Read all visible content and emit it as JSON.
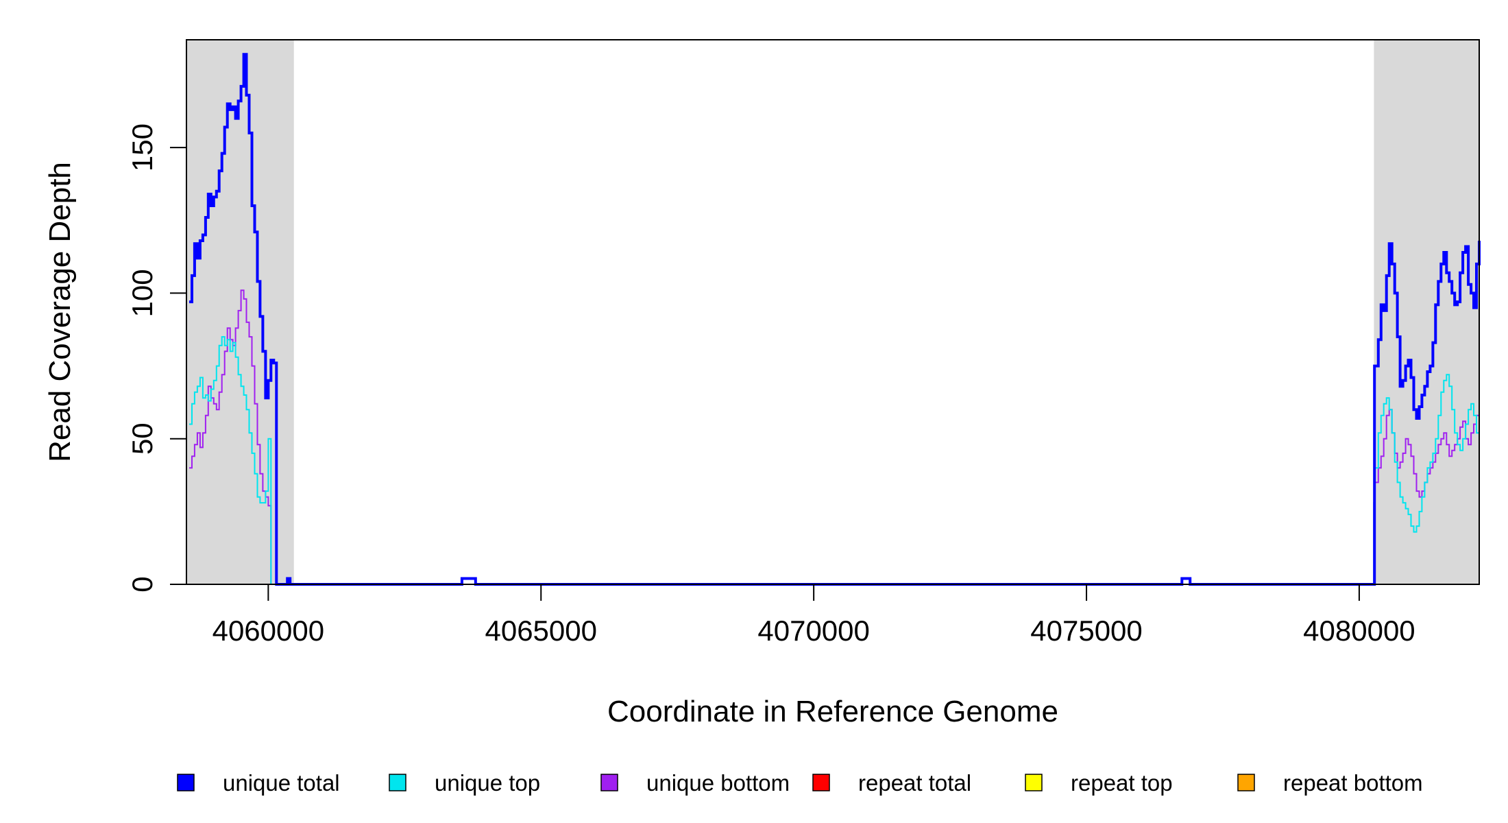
{
  "chart_data": {
    "type": "line",
    "title": "",
    "xlabel": "Coordinate in Reference Genome",
    "ylabel": "Read Coverage Depth",
    "xlim": [
      4058500,
      4082200
    ],
    "ylim": [
      0,
      187
    ],
    "x_ticks": [
      4060000,
      4065000,
      4070000,
      4075000,
      4080000
    ],
    "x_tick_labels": [
      "4060000",
      "4065000",
      "4070000",
      "4075000",
      "4080000"
    ],
    "y_ticks": [
      0,
      50,
      100,
      150
    ],
    "y_tick_labels": [
      "0",
      "50",
      "100",
      "150"
    ],
    "grid": false,
    "legend_position": "bottom",
    "highlight_regions": [
      {
        "x_start": 4058500,
        "x_end": 4060470,
        "color": "#d9d9d9"
      },
      {
        "x_start": 4080270,
        "x_end": 4082200,
        "color": "#d9d9d9"
      }
    ],
    "series": [
      {
        "name": "unique total",
        "color": "#0000ff",
        "style": "step-thick",
        "x": [
          4058550,
          4058600,
          4058650,
          4058700,
          4058750,
          4058800,
          4058850,
          4058900,
          4058950,
          4059000,
          4059050,
          4059100,
          4059150,
          4059200,
          4059250,
          4059300,
          4059350,
          4059400,
          4059450,
          4059500,
          4059550,
          4059600,
          4059650,
          4059700,
          4059750,
          4059800,
          4059850,
          4059900,
          4059950,
          4060000,
          4060050,
          4060100,
          4060150,
          4060200,
          4060250,
          4060300,
          4060350,
          4060400,
          4060460,
          4060480,
          4061000,
          4063500,
          4063550,
          4063800,
          4063850,
          4064500,
          4070000,
          4076500,
          4076700,
          4076750,
          4076900,
          4076950,
          4078000,
          4080270,
          4080280,
          4080350,
          4080400,
          4080450,
          4080500,
          4080550,
          4080600,
          4080650,
          4080700,
          4080750,
          4080800,
          4080850,
          4080900,
          4080950,
          4081000,
          4081050,
          4081100,
          4081150,
          4081200,
          4081250,
          4081300,
          4081350,
          4081400,
          4081450,
          4081500,
          4081550,
          4081600,
          4081650,
          4081700,
          4081750,
          4081800,
          4081850,
          4081900,
          4081950,
          4082000,
          4082050,
          4082100,
          4082150,
          4082200
        ],
        "y": [
          97,
          106,
          117,
          112,
          118,
          120,
          126,
          134,
          130,
          133,
          135,
          142,
          148,
          157,
          165,
          163,
          164,
          160,
          166,
          171,
          182,
          168,
          155,
          130,
          121,
          104,
          92,
          80,
          64,
          70,
          77,
          76,
          0,
          0,
          0,
          0,
          2,
          0,
          0,
          0,
          0,
          0,
          2,
          0,
          0,
          0,
          0,
          0,
          0,
          2,
          0,
          0,
          0,
          0,
          75,
          84,
          96,
          94,
          106,
          117,
          110,
          100,
          85,
          68,
          70,
          75,
          77,
          71,
          60,
          57,
          61,
          65,
          68,
          73,
          75,
          83,
          96,
          104,
          110,
          114,
          107,
          104,
          100,
          96,
          97,
          107,
          114,
          116,
          103,
          100,
          95,
          110,
          118
        ]
      },
      {
        "name": "unique top",
        "color": "#00e5ee",
        "style": "step-thin",
        "x": [
          4058550,
          4058600,
          4058650,
          4058700,
          4058750,
          4058800,
          4058850,
          4058900,
          4058950,
          4059000,
          4059050,
          4059100,
          4059150,
          4059200,
          4059250,
          4059300,
          4059350,
          4059400,
          4059450,
          4059500,
          4059550,
          4059600,
          4059650,
          4059700,
          4059750,
          4059800,
          4059850,
          4059900,
          4059950,
          4060000,
          4060050,
          4060100,
          4060150,
          4060200,
          4060250,
          4060300,
          4060350,
          4060400,
          4060460,
          4060480,
          4080270,
          4080280,
          4080350,
          4080400,
          4080450,
          4080500,
          4080550,
          4080600,
          4080650,
          4080700,
          4080750,
          4080800,
          4080850,
          4080900,
          4080950,
          4081000,
          4081050,
          4081100,
          4081150,
          4081200,
          4081250,
          4081300,
          4081350,
          4081400,
          4081450,
          4081500,
          4081550,
          4081600,
          4081650,
          4081700,
          4081750,
          4081800,
          4081850,
          4081900,
          4081950,
          4082000,
          4082050,
          4082100,
          4082150,
          4082200
        ],
        "y": [
          55,
          62,
          66,
          68,
          71,
          64,
          65,
          63,
          67,
          70,
          75,
          82,
          85,
          82,
          84,
          80,
          83,
          78,
          72,
          68,
          65,
          60,
          52,
          45,
          38,
          30,
          28,
          28,
          32,
          50,
          0,
          0,
          0,
          0,
          0,
          0,
          0,
          0,
          0,
          0,
          28,
          40,
          52,
          58,
          62,
          64,
          60,
          52,
          42,
          35,
          30,
          28,
          26,
          24,
          20,
          18,
          20,
          25,
          30,
          35,
          40,
          42,
          45,
          50,
          58,
          66,
          70,
          72,
          68,
          60,
          52,
          48,
          46,
          50,
          55,
          60,
          62,
          58,
          52,
          50
        ]
      },
      {
        "name": "unique bottom",
        "color": "#a020f0",
        "style": "step-thin",
        "x": [
          4058550,
          4058600,
          4058650,
          4058700,
          4058750,
          4058800,
          4058850,
          4058900,
          4058950,
          4059000,
          4059050,
          4059100,
          4059150,
          4059200,
          4059250,
          4059300,
          4059350,
          4059400,
          4059450,
          4059500,
          4059550,
          4059600,
          4059650,
          4059700,
          4059750,
          4059800,
          4059850,
          4059900,
          4059950,
          4060000,
          4060050,
          4060100,
          4060150,
          4060200,
          4060250,
          4060300,
          4060350,
          4060400,
          4060460,
          4060480,
          4080270,
          4080280,
          4080350,
          4080400,
          4080450,
          4080500,
          4080550,
          4080600,
          4080650,
          4080700,
          4080750,
          4080800,
          4080850,
          4080900,
          4080950,
          4081000,
          4081050,
          4081100,
          4081150,
          4081200,
          4081250,
          4081300,
          4081350,
          4081400,
          4081450,
          4081500,
          4081550,
          4081600,
          4081650,
          4081700,
          4081750,
          4081800,
          4081850,
          4081900,
          4081950,
          4082000,
          4082050,
          4082100,
          4082150,
          4082200
        ],
        "y": [
          40,
          44,
          48,
          52,
          47,
          52,
          58,
          68,
          64,
          62,
          60,
          66,
          72,
          80,
          88,
          84,
          82,
          88,
          94,
          101,
          98,
          90,
          85,
          75,
          62,
          48,
          38,
          32,
          30,
          27,
          0,
          0,
          0,
          0,
          0,
          0,
          0,
          0,
          0,
          0,
          28,
          35,
          40,
          44,
          50,
          58,
          60,
          52,
          45,
          40,
          42,
          45,
          50,
          48,
          44,
          38,
          32,
          30,
          32,
          35,
          38,
          40,
          42,
          45,
          48,
          50,
          52,
          48,
          44,
          46,
          48,
          50,
          54,
          56,
          50,
          48,
          52,
          55,
          58,
          60
        ]
      },
      {
        "name": "repeat total",
        "color": "#ff0000",
        "style": "step-thin",
        "x": [
          4058500,
          4082200
        ],
        "y": [
          0,
          0
        ]
      },
      {
        "name": "repeat top",
        "color": "#ffff00",
        "style": "step-thin",
        "x": [
          4058500,
          4082200
        ],
        "y": [
          0,
          0
        ]
      },
      {
        "name": "repeat bottom",
        "color": "#ffa500",
        "style": "step-thin",
        "x": [
          4058500,
          4082200
        ],
        "y": [
          0,
          0
        ]
      }
    ]
  }
}
